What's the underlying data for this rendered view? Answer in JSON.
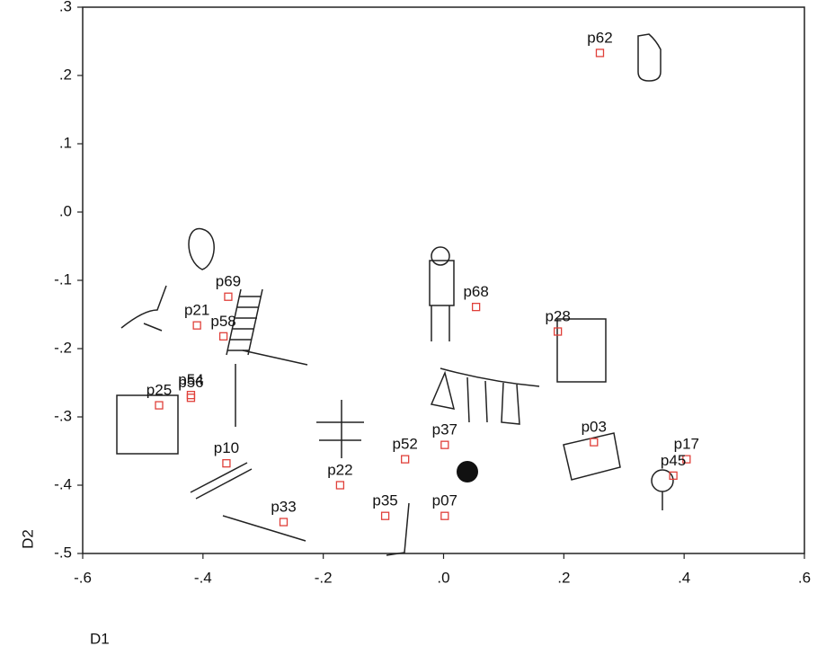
{
  "chart_data": {
    "type": "scatter",
    "xlabel": "D1",
    "ylabel": "D2",
    "color": "#e0403a",
    "point_labels": [
      "p62",
      "p69",
      "p21",
      "p58",
      "p54",
      "p56",
      "p25",
      "p10",
      "p33",
      "p22",
      "p52",
      "p37",
      "p35",
      "p07",
      "p68",
      "p28",
      "p03",
      "p17",
      "p45"
    ],
    "x": [
      0.26,
      -0.358,
      -0.41,
      -0.366,
      -0.42,
      -0.42,
      -0.473,
      -0.361,
      -0.266,
      -0.172,
      -0.064,
      0.002,
      -0.097,
      0.002,
      0.054,
      0.19,
      0.25,
      0.404,
      0.382
    ],
    "y": [
      0.233,
      -0.124,
      -0.166,
      -0.182,
      -0.268,
      -0.272,
      -0.283,
      -0.368,
      -0.454,
      -0.4,
      -0.362,
      -0.341,
      -0.445,
      -0.445,
      -0.139,
      -0.175,
      -0.337,
      -0.362,
      -0.386
    ],
    "xlim": [
      -0.6,
      0.6
    ],
    "ylim": [
      -0.5,
      0.3
    ],
    "xticks": [
      {
        "value": -0.6,
        "label": "-.6"
      },
      {
        "value": -0.4,
        "label": "-.4"
      },
      {
        "value": -0.2,
        "label": "-.2"
      },
      {
        "value": 0,
        "label": ".0"
      },
      {
        "value": 0.2,
        "label": ".2"
      },
      {
        "value": 0.4,
        "label": ".4"
      },
      {
        "value": 0.6,
        "label": ".6"
      }
    ],
    "yticks": [
      {
        "value": -0.5,
        "label": "-.5"
      },
      {
        "value": -0.4,
        "label": "-.4"
      },
      {
        "value": -0.3,
        "label": "-.3"
      },
      {
        "value": -0.2,
        "label": "-.2"
      },
      {
        "value": -0.1,
        "label": "-.1"
      },
      {
        "value": 0,
        "label": ".0"
      },
      {
        "value": 0.1,
        "label": ".1"
      },
      {
        "value": 0.2,
        "label": ".2"
      },
      {
        "value": 0.3,
        "label": ".3"
      }
    ]
  }
}
